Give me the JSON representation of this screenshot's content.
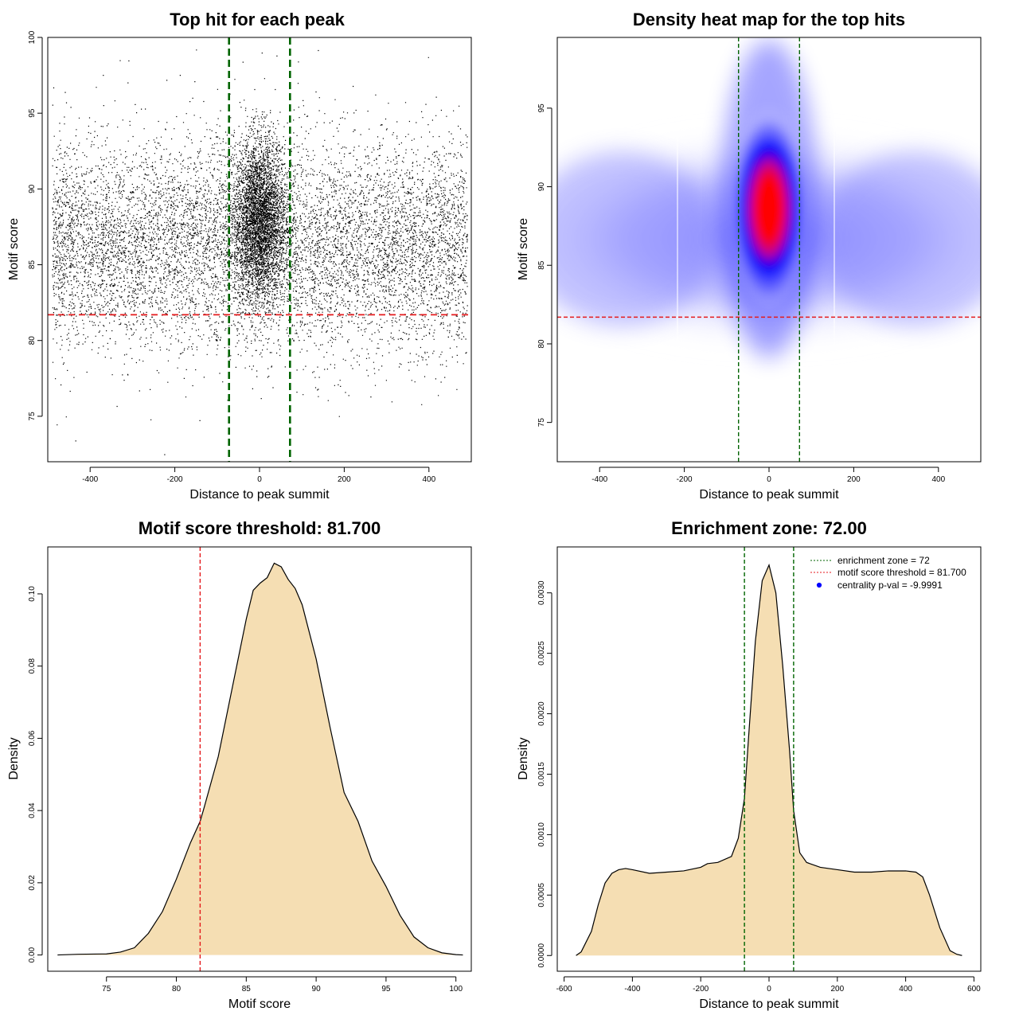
{
  "chart_data": [
    {
      "type": "scatter",
      "title": "Top hit for each peak",
      "xlabel": "Distance to peak summit",
      "ylabel": "Motif score",
      "xlim": [
        -500,
        500
      ],
      "ylim": [
        72,
        100
      ],
      "xticks": [
        -400,
        -200,
        0,
        200,
        400
      ],
      "yticks": [
        75,
        80,
        85,
        90,
        95,
        100
      ],
      "enrichment_zone_lines": [
        -72,
        72
      ],
      "threshold_line": 81.7,
      "colors": {
        "points": "#000000",
        "vlines": "#006400",
        "hline": "#e41a1c"
      },
      "point_sample": [
        {
          "x": -487,
          "y": 96.7
        },
        {
          "x": -420,
          "y": 89.0
        },
        {
          "x": -365,
          "y": 93.2
        },
        {
          "x": -330,
          "y": 98.5
        },
        {
          "x": -280,
          "y": 95.3
        },
        {
          "x": -220,
          "y": 97.2
        },
        {
          "x": -180,
          "y": 88.3
        },
        {
          "x": -150,
          "y": 99.2
        },
        {
          "x": -100,
          "y": 96.6
        },
        {
          "x": -40,
          "y": 98.4
        },
        {
          "x": 5,
          "y": 99.0
        },
        {
          "x": 40,
          "y": 98.8
        },
        {
          "x": 90,
          "y": 97.0
        },
        {
          "x": 140,
          "y": 95.2
        },
        {
          "x": 220,
          "y": 96.8
        },
        {
          "x": 300,
          "y": 94.0
        },
        {
          "x": 398,
          "y": 98.7
        },
        {
          "x": 470,
          "y": 95.5
        },
        {
          "x": -435,
          "y": 73.4
        },
        {
          "x": -225,
          "y": 72.5
        },
        {
          "x": 3,
          "y": 76.2
        },
        {
          "x": 415,
          "y": 77.5
        },
        {
          "x": -470,
          "y": 77.1
        },
        {
          "x": 190,
          "y": 77.0
        }
      ]
    },
    {
      "type": "heatmap",
      "title": "Density heat map for the top hits",
      "xlabel": "Distance to peak summit",
      "ylabel": "Motif score",
      "xlim": [
        -500,
        500
      ],
      "ylim": [
        72.5,
        99.5
      ],
      "xticks": [
        -400,
        -200,
        0,
        200,
        400
      ],
      "yticks": [
        75,
        80,
        85,
        90,
        95
      ],
      "enrichment_zone_lines": [
        -72,
        72
      ],
      "threshold_line": 81.7,
      "colors": {
        "low": "#ffffff",
        "mid": "#0000ff",
        "high": "#ff0000",
        "vlines": "#006400",
        "hline": "#e41a1c"
      },
      "peak": {
        "x": 0,
        "y": 88
      }
    },
    {
      "type": "area",
      "title": "Motif score threshold: 81.700",
      "xlabel": "Motif score",
      "ylabel": "Density",
      "xlim": [
        70.8,
        101.1
      ],
      "ylim": [
        -0.0045,
        0.113
      ],
      "xticks": [
        75,
        80,
        85,
        90,
        95,
        100
      ],
      "yticks": [
        0.0,
        0.02,
        0.04,
        0.06,
        0.08,
        0.1
      ],
      "ytick_labels": [
        "0.00",
        "0.02",
        "0.04",
        "0.06",
        "0.08",
        "0.10"
      ],
      "threshold_line": 81.7,
      "colors": {
        "fill": "#f5deb3",
        "line": "#000000",
        "vline": "#e41a1c"
      },
      "x": [
        71.5,
        73,
        75,
        76,
        77,
        77.5,
        78,
        79,
        80,
        81,
        81.7,
        82,
        83,
        84,
        85,
        85.5,
        86,
        86.5,
        87,
        87.5,
        88,
        88.5,
        89,
        90,
        91,
        92,
        93,
        94,
        95,
        96,
        97,
        98,
        99,
        100,
        100.5
      ],
      "y": [
        0.0,
        0.0002,
        0.0003,
        0.0008,
        0.002,
        0.004,
        0.006,
        0.012,
        0.021,
        0.031,
        0.037,
        0.041,
        0.055,
        0.074,
        0.093,
        0.101,
        0.103,
        0.1045,
        0.1085,
        0.1075,
        0.104,
        0.1015,
        0.097,
        0.082,
        0.063,
        0.045,
        0.037,
        0.026,
        0.019,
        0.011,
        0.005,
        0.002,
        0.0006,
        0.0001,
        0.0
      ]
    },
    {
      "type": "area",
      "title": "Enrichment zone: 72.00",
      "xlabel": "Distance to peak summit",
      "ylabel": "Density",
      "xlim": [
        -620,
        620
      ],
      "ylim": [
        -0.00013,
        0.00338
      ],
      "xticks": [
        -600,
        -400,
        -200,
        0,
        200,
        400,
        600
      ],
      "yticks": [
        0.0,
        0.0005,
        0.001,
        0.0015,
        0.002,
        0.0025,
        0.003
      ],
      "ytick_labels": [
        "0.0000",
        "0.0005",
        "0.0010",
        "0.0015",
        "0.0020",
        "0.0025",
        "0.0030"
      ],
      "enrichment_zone_lines": [
        -72,
        72
      ],
      "colors": {
        "fill": "#f5deb3",
        "line": "#000000",
        "vlines": "#006400",
        "legend_zone": "#006400",
        "legend_threshold": "#e41a1c",
        "legend_point": "#0000ff"
      },
      "legend": [
        {
          "label": "enrichment zone = 72",
          "style": "dotted",
          "color": "#006400"
        },
        {
          "label": "motif score threshold = 81.700",
          "style": "dotted",
          "color": "#e41a1c"
        },
        {
          "label": "centrality p-val = -9.9991",
          "style": "point",
          "color": "#0000ff"
        }
      ],
      "legend_position": "top-right",
      "x": [
        -565,
        -550,
        -520,
        -500,
        -480,
        -460,
        -440,
        -420,
        -400,
        -350,
        -300,
        -250,
        -200,
        -180,
        -150,
        -110,
        -90,
        -72,
        -60,
        -40,
        -20,
        0,
        20,
        40,
        60,
        72,
        90,
        110,
        150,
        200,
        250,
        300,
        350,
        400,
        430,
        450,
        470,
        500,
        530,
        550,
        565
      ],
      "y": [
        0.0,
        3e-05,
        0.0002,
        0.00042,
        0.0006,
        0.00068,
        0.00071,
        0.00072,
        0.00071,
        0.00068,
        0.00069,
        0.0007,
        0.00073,
        0.00076,
        0.00077,
        0.00082,
        0.00097,
        0.0013,
        0.0018,
        0.0026,
        0.0031,
        0.00323,
        0.003,
        0.0024,
        0.0017,
        0.0012,
        0.00085,
        0.00077,
        0.00073,
        0.00071,
        0.00069,
        0.00069,
        0.0007,
        0.0007,
        0.00069,
        0.00065,
        0.0005,
        0.00023,
        4e-05,
        1e-05,
        0.0
      ]
    }
  ]
}
